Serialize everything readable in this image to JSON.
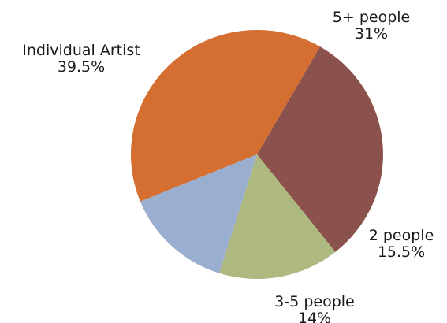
{
  "chart_data": {
    "type": "pie",
    "title": "",
    "slices": [
      {
        "label": "5+ people",
        "value": 31,
        "value_label": "31%",
        "color": "#8b524d"
      },
      {
        "label": "2 people",
        "value": 15.5,
        "value_label": "15.5%",
        "color": "#adb97f"
      },
      {
        "label": "3-5 people",
        "value": 14,
        "value_label": "14%",
        "color": "#9aaecf"
      },
      {
        "label": "Individual Artist",
        "value": 39.5,
        "value_label": "39.5%",
        "color": "#d46e31"
      }
    ],
    "legend": "none"
  }
}
